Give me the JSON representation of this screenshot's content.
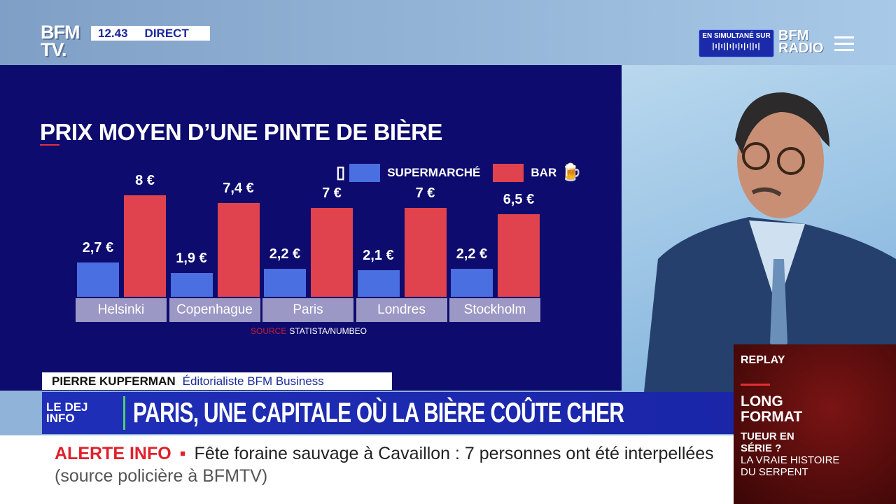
{
  "header": {
    "logo": "BFM TV.",
    "time": "12.43",
    "live": "DIRECT",
    "simulcast": "EN SIMULTANÉ SUR",
    "radio_logo": "BFM RADIO"
  },
  "chart_data": {
    "type": "bar",
    "title": "PRIX MOYEN D’UNE PINTE DE BIÈRE",
    "categories": [
      "Helsinki",
      "Copenhague",
      "Paris",
      "Londres",
      "Stockholm"
    ],
    "series": [
      {
        "name": "SUPERMARCHÉ",
        "color": "#4a6fe0",
        "values": [
          2.7,
          1.9,
          2.2,
          2.1,
          2.2
        ],
        "labels": [
          "2,7 €",
          "1,9 €",
          "2,2 €",
          "2,1 €",
          "2,2 €"
        ]
      },
      {
        "name": "BAR",
        "color": "#e0434e",
        "values": [
          8,
          7.4,
          7,
          7,
          6.5
        ],
        "labels": [
          "8 €",
          "7,4 €",
          "7 €",
          "7 €",
          "6,5 €"
        ]
      }
    ],
    "ylim": [
      0,
      8
    ],
    "source_label": "SOURCE",
    "source": "STATISTA/NUMBEO"
  },
  "lower_third": {
    "name": "PIERRE KUPFERMAN",
    "role": "Éditorialiste BFM Business",
    "show": "LE DEJ INFO",
    "headline": "PARIS, UNE CAPITALE OÙ LA BIÈRE COÛTE CHER"
  },
  "ticker": {
    "label": "ALERTE INFO",
    "text": "Fête foraine sauvage à Cavaillon : 7 personnes ont été interpellées",
    "source": "(source policière à BFMTV)"
  },
  "replay": {
    "label": "REPLAY",
    "format": "LONG FORMAT",
    "title1": "TUEUR EN SÉRIE ?",
    "title2": "LA VRAIE HISTOIRE DU SERPENT"
  }
}
